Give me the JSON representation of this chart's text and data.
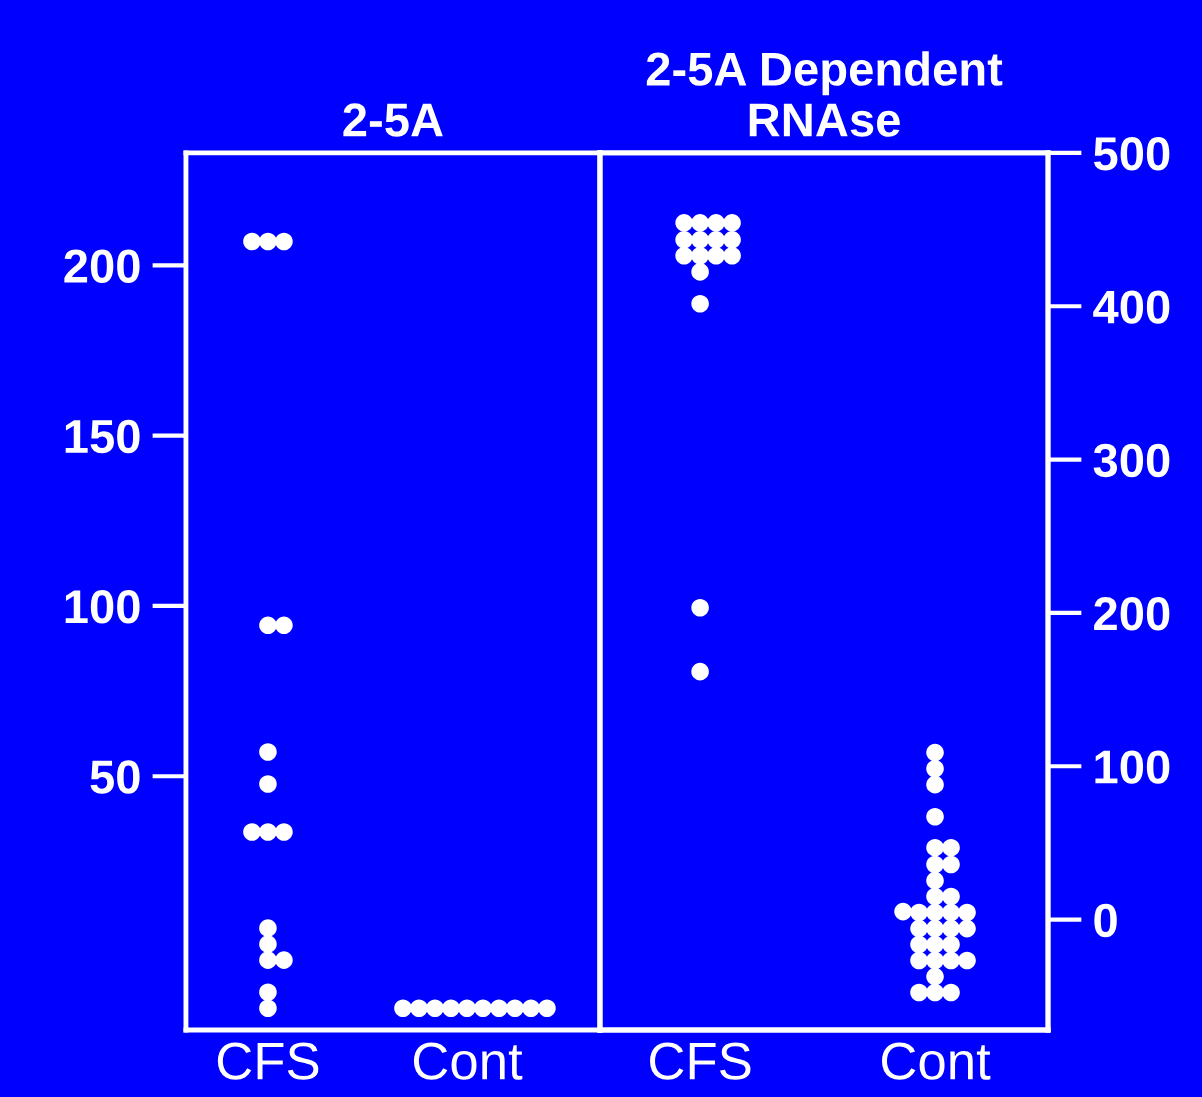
{
  "chart_data": [
    {
      "type": "scatter",
      "title": "2-5A",
      "categories": [
        "CFS",
        "Cont"
      ],
      "ylim": [
        -24.5,
        233
      ],
      "yticks": [
        50,
        100,
        150,
        200
      ],
      "marker": "circle",
      "series": [
        {
          "color": "#ffffff",
          "x": [
            "CFS",
            "CFS",
            "CFS",
            "CFS",
            "CFS",
            "CFS",
            "CFS",
            "CFS",
            "CFS",
            "CFS",
            "CFS",
            "CFS",
            "CFS",
            "CFS",
            "CFS",
            "CFS"
          ],
          "values": [
            207.0,
            207.0,
            207.0,
            94.3,
            94.3,
            57.1,
            47.7,
            33.6,
            33.6,
            33.6,
            5.4,
            0.7,
            -4.0,
            -4.0,
            -13.4,
            -18.1
          ]
        },
        {
          "color": "#ffffff",
          "x": [
            "Cont",
            "Cont",
            "Cont",
            "Cont",
            "Cont",
            "Cont",
            "Cont",
            "Cont",
            "Cont",
            "Cont"
          ],
          "values": [
            -18.1,
            -18.1,
            -18.1,
            -18.1,
            -18.1,
            -18.1,
            -18.1,
            -18.1,
            -18.1,
            -18.1
          ]
        }
      ]
    },
    {
      "type": "scatter",
      "title": "2-5A Dependent\nRNAse",
      "categories": [
        "CFS",
        "Cont"
      ],
      "y2lim": [
        -72,
        500
      ],
      "y2ticks": [
        0,
        100,
        200,
        300,
        400,
        500
      ],
      "marker": "circle",
      "series": [
        {
          "color": "#ffffff",
          "axis": "y2",
          "x": [
            "CFS",
            "CFS",
            "CFS",
            "CFS",
            "CFS",
            "CFS",
            "CFS",
            "CFS",
            "CFS",
            "CFS",
            "CFS",
            "CFS",
            "CFS",
            "CFS",
            "CFS",
            "CFS"
          ],
          "values": [
            454.4,
            454.4,
            454.4,
            454.4,
            443.3,
            443.3,
            443.3,
            443.3,
            432.9,
            432.9,
            432.9,
            432.9,
            422.4,
            401.6,
            203.4,
            161.7
          ]
        },
        {
          "color": "#ffffff",
          "axis": "y2",
          "x": [
            "Cont",
            "Cont",
            "Cont",
            "Cont",
            "Cont",
            "Cont",
            "Cont",
            "Cont",
            "Cont",
            "Cont",
            "Cont",
            "Cont",
            "Cont",
            "Cont",
            "Cont",
            "Cont",
            "Cont",
            "Cont",
            "Cont",
            "Cont",
            "Cont",
            "Cont",
            "Cont",
            "Cont",
            "Cont",
            "Cont",
            "Cont",
            "Cont",
            "Cont",
            "Cont",
            "Cont"
          ],
          "values": [
            108.9,
            98.4,
            88.0,
            67.1,
            46.9,
            46.9,
            35.9,
            35.9,
            25.4,
            15.0,
            15.0,
            4.6,
            4.6,
            4.6,
            4.6,
            5.2,
            -5.9,
            -5.9,
            -5.9,
            -5.9,
            -16.3,
            -16.3,
            -16.3,
            -26.7,
            -26.7,
            -26.7,
            -26.7,
            -37.2,
            -47.6,
            -47.6,
            -47.6
          ]
        }
      ]
    }
  ]
}
